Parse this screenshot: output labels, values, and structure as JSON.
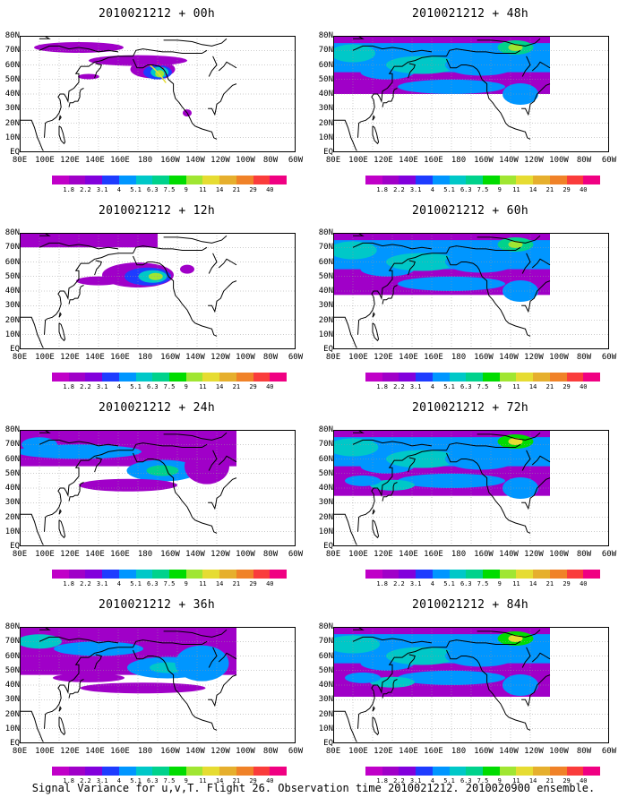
{
  "figure": {
    "caption": "Signal Variance for u,v,T. Flight 26. Observation time 2010021212. 2010020900 ensemble."
  },
  "axes": {
    "y_ticks": [
      "80N",
      "70N",
      "60N",
      "50N",
      "40N",
      "30N",
      "20N",
      "10N",
      "EQ"
    ],
    "x_ticks": [
      "80E",
      "100E",
      "120E",
      "140E",
      "160E",
      "180",
      "160W",
      "140W",
      "120W",
      "100W",
      "80W",
      "60W"
    ]
  },
  "colorbar": {
    "labels": [
      "1.8",
      "2.2",
      "3.1",
      "4",
      "5.1",
      "6.3",
      "7.5",
      "9",
      "11",
      "14",
      "21",
      "29",
      "40"
    ],
    "colors": [
      "#a000c8",
      "#8200dc",
      "#1e3cff",
      "#0096ff",
      "#00c8c8",
      "#00d28c",
      "#00dc00",
      "#a0e632",
      "#e6dc32",
      "#e6af2d",
      "#f08228",
      "#fa3c3c",
      "#f00082"
    ]
  },
  "panels": [
    {
      "title": "2010021212 + 00h",
      "lead_hours": 0,
      "side": "left",
      "row": 0
    },
    {
      "title": "2010021212 + 12h",
      "lead_hours": 12,
      "side": "left",
      "row": 1
    },
    {
      "title": "2010021212 + 24h",
      "lead_hours": 24,
      "side": "left",
      "row": 2
    },
    {
      "title": "2010021212 + 36h",
      "lead_hours": 36,
      "side": "left",
      "row": 3
    },
    {
      "title": "2010021212 + 48h",
      "lead_hours": 48,
      "side": "right",
      "row": 0
    },
    {
      "title": "2010021212 + 60h",
      "lead_hours": 60,
      "side": "right",
      "row": 1
    },
    {
      "title": "2010021212 + 72h",
      "lead_hours": 72,
      "side": "right",
      "row": 2
    },
    {
      "title": "2010021212 + 84h",
      "lead_hours": 84,
      "side": "right",
      "row": 3
    }
  ]
}
